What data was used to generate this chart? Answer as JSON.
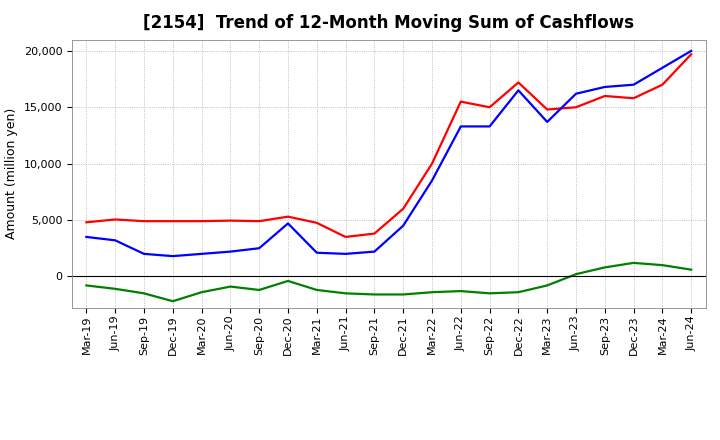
{
  "title": "[2154]  Trend of 12-Month Moving Sum of Cashflows",
  "ylabel": "Amount (million yen)",
  "x_labels": [
    "Mar-19",
    "Jun-19",
    "Sep-19",
    "Dec-19",
    "Mar-20",
    "Jun-20",
    "Sep-20",
    "Dec-20",
    "Mar-21",
    "Jun-21",
    "Sep-21",
    "Dec-21",
    "Mar-22",
    "Jun-22",
    "Sep-22",
    "Dec-22",
    "Mar-23",
    "Jun-23",
    "Sep-23",
    "Dec-23",
    "Mar-24",
    "Jun-24"
  ],
  "operating": [
    4800,
    5050,
    4900,
    4900,
    4900,
    4950,
    4900,
    5300,
    4750,
    3500,
    3800,
    6000,
    10000,
    15500,
    15000,
    17200,
    14800,
    15000,
    16000,
    15800,
    17000,
    19700
  ],
  "investing": [
    -800,
    -1100,
    -1500,
    -2200,
    -1400,
    -900,
    -1200,
    -400,
    -1200,
    -1500,
    -1600,
    -1600,
    -1400,
    -1300,
    -1500,
    -1400,
    -800,
    200,
    800,
    1200,
    1000,
    600
  ],
  "free": [
    3500,
    3200,
    2000,
    1800,
    2000,
    2200,
    2500,
    4700,
    2100,
    2000,
    2200,
    4500,
    8500,
    13300,
    13300,
    16500,
    13700,
    16200,
    16800,
    17000,
    18500,
    20000
  ],
  "operating_color": "#ff0000",
  "investing_color": "#008000",
  "free_color": "#0000ff",
  "ylim": [
    -2800,
    21000
  ],
  "yticks": [
    0,
    5000,
    10000,
    15000,
    20000
  ],
  "background_color": "#ffffff",
  "grid_color": "#aaaaaa",
  "title_fontsize": 12,
  "label_fontsize": 9,
  "tick_fontsize": 8,
  "legend_fontsize": 9,
  "linewidth": 1.6
}
